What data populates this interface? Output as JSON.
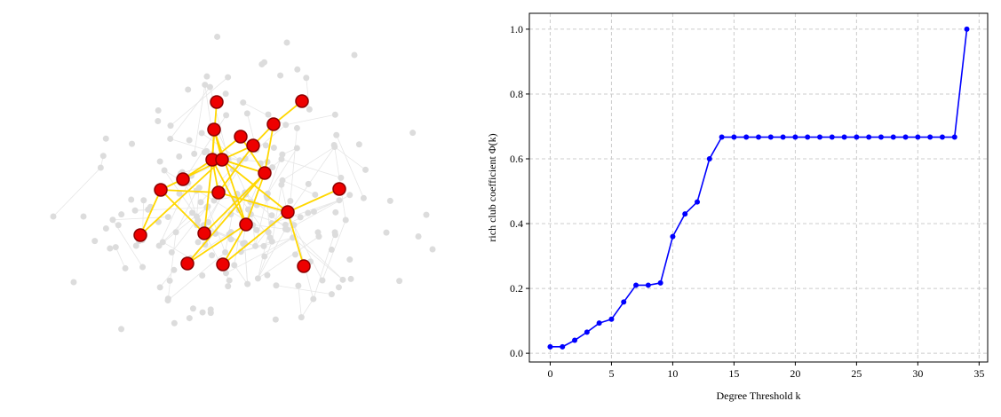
{
  "chart_data": {
    "type": "line",
    "x_label": "Degree Threshold k",
    "y_label": "rich club coefficient Φ(k)",
    "x": [
      0,
      1,
      2,
      3,
      4,
      5,
      6,
      7,
      8,
      9,
      10,
      11,
      12,
      13,
      14,
      15,
      16,
      17,
      18,
      19,
      20,
      21,
      22,
      23,
      24,
      25,
      26,
      27,
      28,
      29,
      30,
      31,
      32,
      33,
      34
    ],
    "values": [
      0.02,
      0.02,
      0.04,
      0.065,
      0.093,
      0.105,
      0.158,
      0.21,
      0.21,
      0.217,
      0.36,
      0.43,
      0.467,
      0.6,
      0.667,
      0.667,
      0.667,
      0.667,
      0.667,
      0.667,
      0.667,
      0.667,
      0.667,
      0.667,
      0.667,
      0.667,
      0.667,
      0.667,
      0.667,
      0.667,
      0.667,
      0.667,
      0.667,
      0.667,
      1.0
    ],
    "color": "#0000ff",
    "xlim": [
      -1.7,
      35.7
    ],
    "xticks": [
      0,
      5,
      10,
      15,
      20,
      25,
      30,
      35
    ],
    "ylim": [
      -0.027,
      1.049
    ],
    "yticks": [
      {
        "value": 0,
        "label": "0.0"
      },
      {
        "value": 0.2,
        "label": "0.2"
      },
      {
        "value": 0.4,
        "label": "0.4"
      },
      {
        "value": 0.6,
        "label": "0.6"
      },
      {
        "value": 0.8,
        "label": "0.8"
      },
      {
        "value": 1,
        "label": "1.0"
      }
    ],
    "grid": true
  }
}
